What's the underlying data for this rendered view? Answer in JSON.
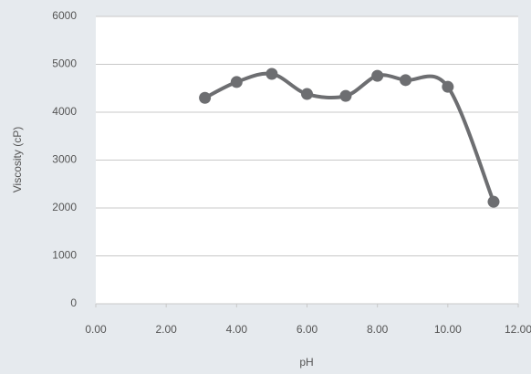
{
  "chart_data": {
    "type": "line",
    "x_label": "pH",
    "y_label": "Viscosity (cP)",
    "x": [
      3.1,
      4.0,
      5.0,
      6.0,
      7.1,
      8.0,
      8.8,
      10.0,
      11.3
    ],
    "series": [
      {
        "name": "Viscosity",
        "color": "#6d6e71",
        "values": [
          4300,
          4630,
          4800,
          4380,
          4340,
          4760,
          4670,
          4530,
          2130
        ]
      }
    ],
    "xlim": [
      0,
      12
    ],
    "xticks": [
      {
        "value": 0,
        "label": "0.00"
      },
      {
        "value": 2,
        "label": "2.00"
      },
      {
        "value": 4,
        "label": "4.00"
      },
      {
        "value": 6,
        "label": "6.00"
      },
      {
        "value": 8,
        "label": "8.00"
      },
      {
        "value": 10,
        "label": "10.00"
      },
      {
        "value": 12,
        "label": "12.00"
      }
    ],
    "ylim": [
      0,
      6000
    ],
    "yticks": [
      0,
      1000,
      2000,
      3000,
      4000,
      5000,
      6000
    ],
    "grid": true
  }
}
